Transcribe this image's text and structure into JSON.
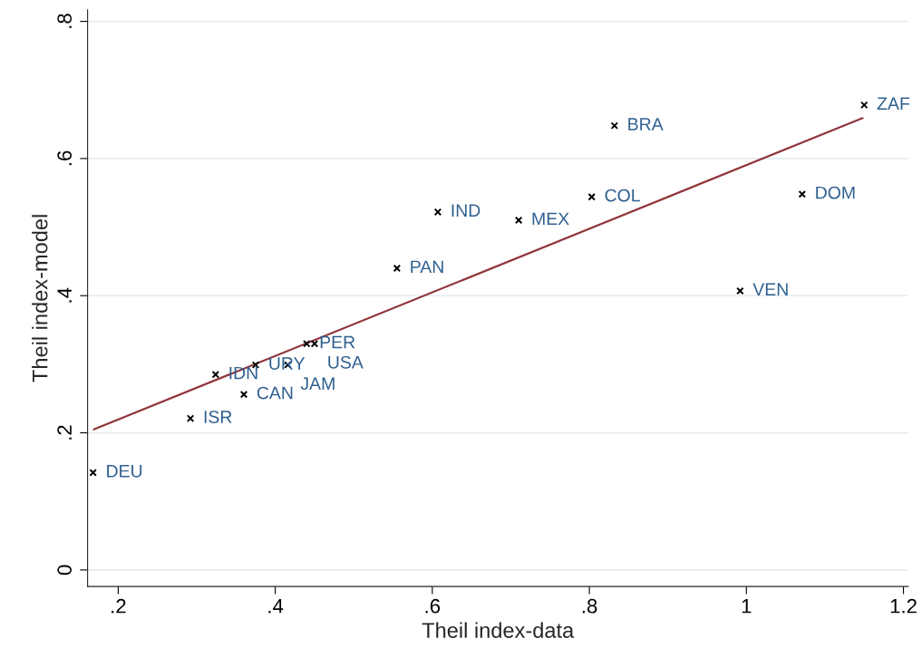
{
  "chart_data": {
    "type": "scatter",
    "xlabel": "Theil index-data",
    "ylabel": "Theil index-model",
    "xlim": [
      0.161,
      1.206
    ],
    "ylim": [
      -0.024,
      0.817
    ],
    "xticks": [
      {
        "value": 0.2,
        "label": ".2"
      },
      {
        "value": 0.4,
        "label": ".4"
      },
      {
        "value": 0.6,
        "label": ".6"
      },
      {
        "value": 0.8,
        "label": ".8"
      },
      1,
      {
        "value": 1.2,
        "label": "1.2"
      }
    ],
    "yticks": [
      0,
      {
        "value": 0.2,
        "label": ".2"
      },
      {
        "value": 0.4,
        "label": ".4"
      },
      {
        "value": 0.6,
        "label": ".6"
      },
      {
        "value": 0.8,
        "label": ".8"
      }
    ],
    "grid": "y",
    "legend": false,
    "series": [
      {
        "marker": "cross",
        "color": "#000000",
        "x": [
          0.168,
          0.292,
          0.36,
          0.324,
          0.375,
          0.416,
          0.44,
          0.45,
          0.555,
          0.607,
          0.71,
          0.803,
          0.832,
          0.992,
          1.071,
          1.15
        ],
        "values": [
          0.142,
          0.221,
          0.256,
          0.285,
          0.299,
          0.299,
          0.33,
          0.33,
          0.44,
          0.522,
          0.51,
          0.544,
          0.648,
          0.407,
          0.548,
          0.678
        ]
      },
      {
        "type": "line",
        "marker": "none",
        "line_style": "solid",
        "color": "#90353b",
        "x": [
          0.169,
          1.148
        ],
        "values": [
          0.205,
          0.659
        ]
      }
    ],
    "annotations": [
      {
        "text": "DEU",
        "x": 0.168,
        "y": 0.142
      },
      {
        "text": "ISR",
        "x": 0.292,
        "y": 0.221
      },
      {
        "text": "CAN",
        "x": 0.36,
        "y": 0.256
      },
      {
        "text": "IDN",
        "x": 0.324,
        "y": 0.285
      },
      {
        "text": "URY",
        "x": 0.375,
        "y": 0.299
      },
      {
        "text": "JAM",
        "x": 0.416,
        "y": 0.299
      },
      {
        "text": "PER",
        "x": 0.44,
        "y": 0.33
      },
      {
        "text": "USA",
        "x": 0.45,
        "y": 0.33
      },
      {
        "text": "PAN",
        "x": 0.555,
        "y": 0.44
      },
      {
        "text": "IND",
        "x": 0.607,
        "y": 0.522
      },
      {
        "text": "MEX",
        "x": 0.71,
        "y": 0.51
      },
      {
        "text": "COL",
        "x": 0.803,
        "y": 0.544
      },
      {
        "text": "BRA",
        "x": 0.832,
        "y": 0.648
      },
      {
        "text": "VEN",
        "x": 0.992,
        "y": 0.407
      },
      {
        "text": "DOM",
        "x": 1.071,
        "y": 0.548
      },
      {
        "text": "ZAF",
        "x": 1.15,
        "y": 0.678
      }
    ]
  }
}
